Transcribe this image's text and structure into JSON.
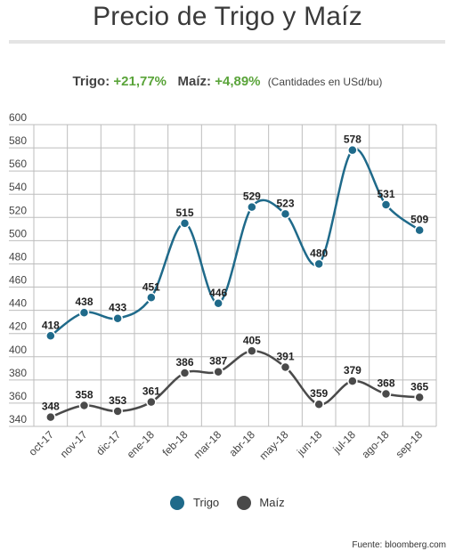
{
  "header": {
    "title": "Precio de Trigo y Maíz"
  },
  "summary": {
    "trigo_label": "Trigo:",
    "trigo_change": "+21,77%",
    "maiz_label": "Maíz:",
    "maiz_change": "+4,89%",
    "units_note": "(Cantidades en USd/bu)"
  },
  "legend": {
    "trigo": "Trigo",
    "maiz": "Maíz"
  },
  "footer": {
    "source": "Fuente: bloomberg.com"
  },
  "colors": {
    "trigo": "#1f6a8a",
    "maiz": "#4a4a4a",
    "positive": "#5aa43a",
    "grid": "#bdbdbd"
  },
  "chart_data": {
    "type": "line",
    "categories": [
      "oct-17",
      "nov-17",
      "dic-17",
      "ene-18",
      "feb-18",
      "mar-18",
      "abr-18",
      "may-18",
      "jun-18",
      "jul-18",
      "ago-18",
      "sep-18"
    ],
    "series": [
      {
        "name": "Trigo",
        "values": [
          418,
          438,
          433,
          451,
          515,
          446,
          529,
          523,
          480,
          578,
          531,
          509
        ]
      },
      {
        "name": "Maíz",
        "values": [
          348,
          358,
          353,
          361,
          386,
          387,
          405,
          391,
          359,
          379,
          368,
          365
        ]
      }
    ],
    "ylim": [
      340,
      600
    ],
    "yticks": [
      340,
      360,
      380,
      400,
      420,
      440,
      460,
      480,
      500,
      520,
      540,
      560,
      580,
      600
    ],
    "grid": true,
    "smooth": true,
    "data_labels": true,
    "legend_position": "bottom"
  }
}
